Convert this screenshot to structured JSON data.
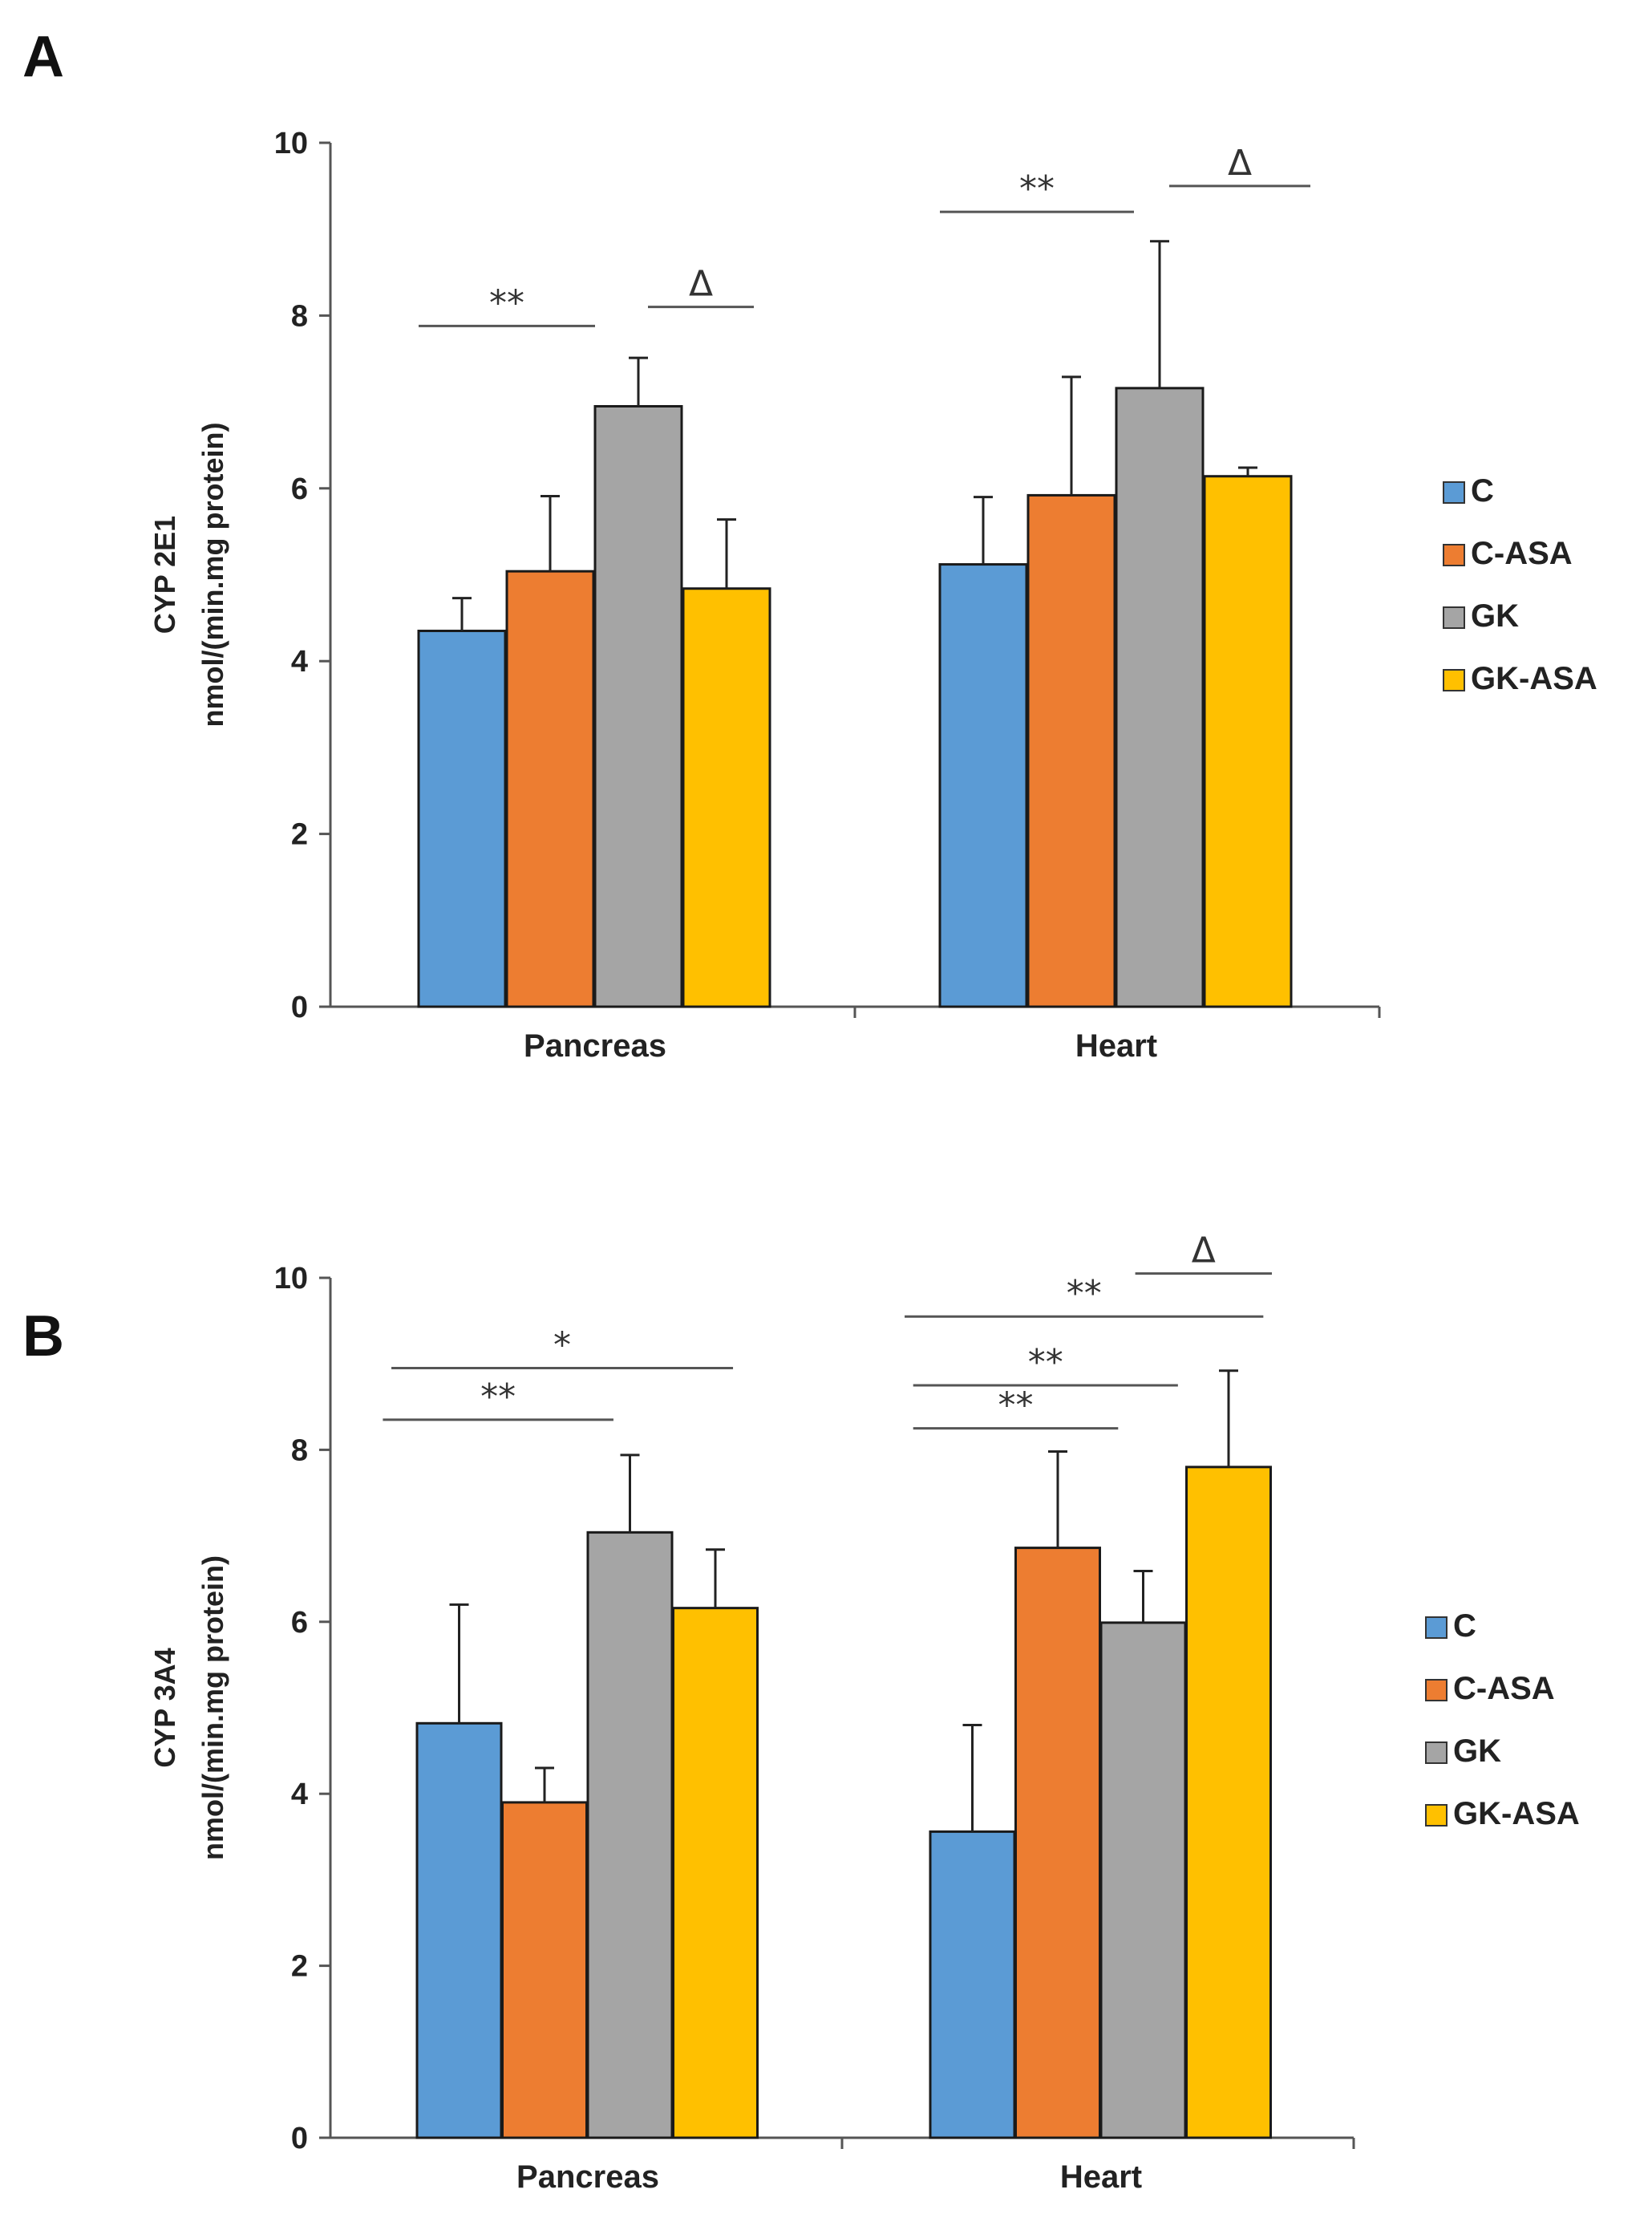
{
  "chart_data": [
    {
      "panel": "A",
      "type": "bar",
      "ylabel_line1": "CYP 2E1",
      "ylabel_line2": "nmol/(min.mg protein)",
      "ylim": [
        0,
        10
      ],
      "yticks": [
        "0",
        "2",
        "4",
        "6",
        "8",
        "10"
      ],
      "categories": [
        "Pancreas",
        "Heart"
      ],
      "series": [
        {
          "name": "C",
          "color": "#5b9bd5",
          "values": [
            4.35,
            5.12
          ],
          "errors": [
            0.38,
            0.78
          ]
        },
        {
          "name": "C-ASA",
          "color": "#ed7d31",
          "values": [
            5.04,
            5.92
          ],
          "errors": [
            0.87,
            1.37
          ]
        },
        {
          "name": "GK",
          "color": "#a5a5a5",
          "values": [
            6.95,
            7.16
          ],
          "errors": [
            0.56,
            1.7
          ]
        },
        {
          "name": "GK-ASA",
          "color": "#ffc000",
          "values": [
            4.84,
            6.14
          ],
          "errors": [
            0.8,
            0.1
          ]
        }
      ],
      "annotations": [
        {
          "text": "**",
          "category": 0,
          "from": 0,
          "to": 2,
          "level": 7.88
        },
        {
          "text": "Δ",
          "category": 0,
          "from": 2.6,
          "to": 3.8,
          "level": 8.1
        },
        {
          "text": "**",
          "category": 1,
          "from": 0,
          "to": 2.2,
          "level": 9.2
        },
        {
          "text": "Δ",
          "category": 1,
          "from": 2.6,
          "to": 4.2,
          "level": 9.5
        }
      ]
    },
    {
      "panel": "B",
      "type": "bar",
      "ylabel_line1": "CYP 3A4",
      "ylabel_line2": "nmol/(min.mg protein)",
      "ylim": [
        0,
        10
      ],
      "yticks": [
        "0",
        "2",
        "4",
        "6",
        "8",
        "10"
      ],
      "categories": [
        "Pancreas",
        "Heart"
      ],
      "series": [
        {
          "name": "C",
          "color": "#5b9bd5",
          "values": [
            4.82,
            3.56
          ],
          "errors": [
            1.38,
            1.24
          ]
        },
        {
          "name": "C-ASA",
          "color": "#ed7d31",
          "values": [
            3.9,
            6.86
          ],
          "errors": [
            0.4,
            1.12
          ]
        },
        {
          "name": "GK",
          "color": "#a5a5a5",
          "values": [
            7.04,
            5.99
          ],
          "errors": [
            0.9,
            0.6
          ]
        },
        {
          "name": "GK-ASA",
          "color": "#ffc000",
          "values": [
            6.16,
            7.8
          ],
          "errors": [
            0.68,
            1.12
          ]
        }
      ],
      "annotations": [
        {
          "text": "**",
          "category": 0,
          "from": -0.4,
          "to": 2.3,
          "level": 8.35
        },
        {
          "text": "*",
          "category": 0,
          "from": -0.3,
          "to": 3.7,
          "level": 8.95
        },
        {
          "text": "**",
          "category": 1,
          "from": -0.2,
          "to": 2.2,
          "level": 8.25
        },
        {
          "text": "**",
          "category": 1,
          "from": -0.2,
          "to": 2.9,
          "level": 8.75
        },
        {
          "text": "**",
          "category": 1,
          "from": -0.3,
          "to": 3.9,
          "level": 9.55
        },
        {
          "text": "Δ",
          "category": 1,
          "from": 2.4,
          "to": 4.0,
          "level": 10.05
        }
      ]
    }
  ]
}
